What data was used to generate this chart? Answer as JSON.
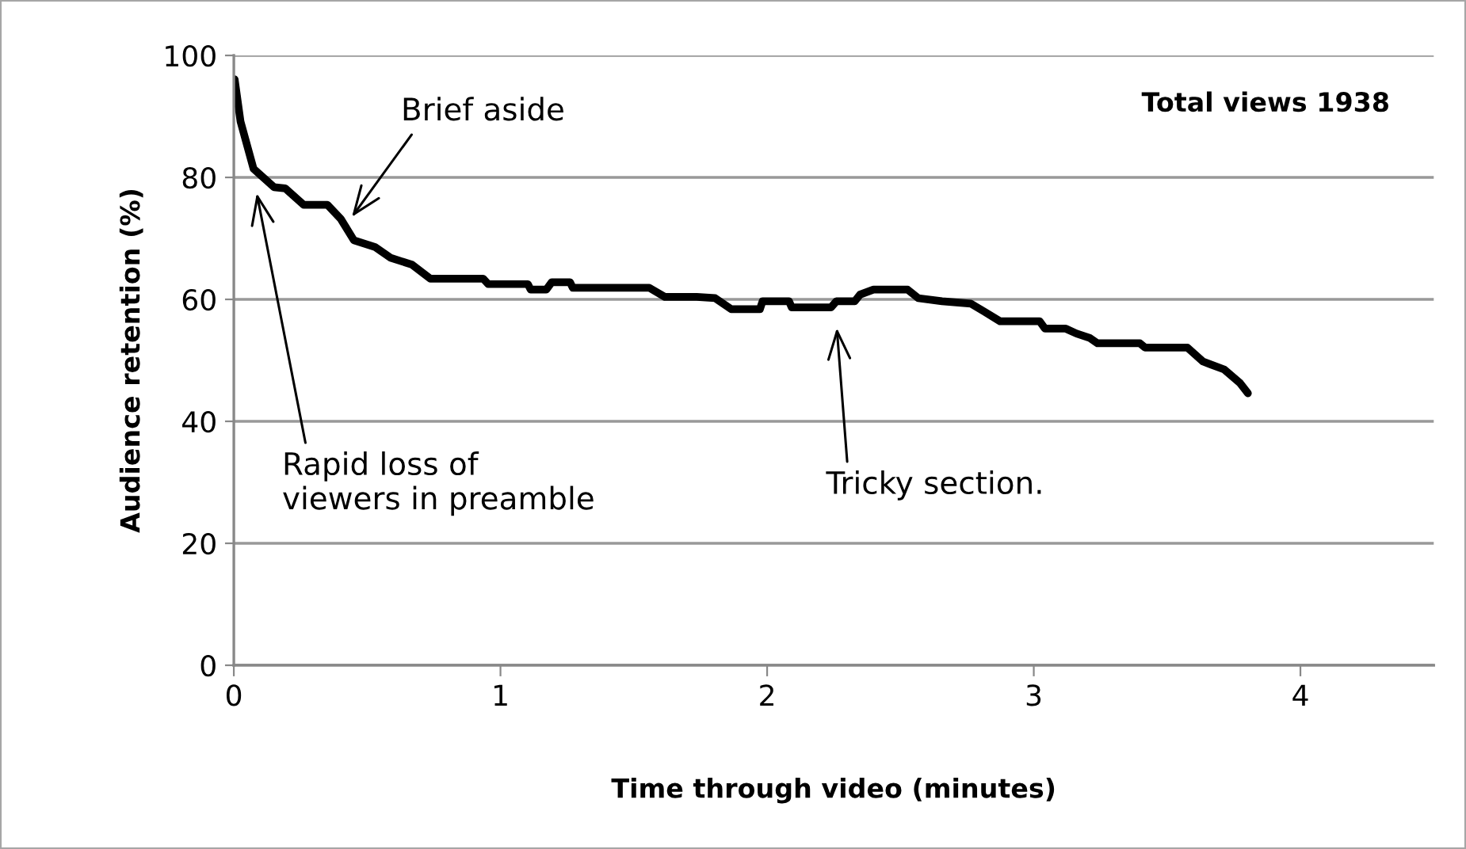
{
  "chart_data": {
    "type": "line",
    "xlabel": "Time through video (minutes)",
    "ylabel": "Audience retention (%)",
    "x": [
      0.003,
      0.025,
      0.074,
      0.151,
      0.193,
      0.262,
      0.351,
      0.401,
      0.45,
      0.529,
      0.589,
      0.668,
      0.737,
      0.935,
      0.954,
      1.103,
      1.113,
      1.172,
      1.192,
      1.261,
      1.271,
      1.558,
      1.617,
      1.736,
      1.805,
      1.865,
      1.973,
      1.983,
      2.082,
      2.092,
      2.24,
      2.26,
      2.329,
      2.349,
      2.399,
      2.527,
      2.567,
      2.656,
      2.764,
      2.814,
      2.874,
      3.022,
      3.042,
      3.12,
      3.16,
      3.209,
      3.239,
      3.398,
      3.417,
      3.576,
      3.635,
      3.714,
      3.773,
      3.803
    ],
    "series": [
      {
        "color": "#000000",
        "values": [
          96.1,
          89.2,
          81.4,
          78.4,
          78.2,
          75.5,
          75.5,
          73.2,
          69.7,
          68.6,
          66.8,
          65.7,
          63.4,
          63.4,
          62.5,
          62.5,
          61.6,
          61.6,
          62.8,
          62.8,
          61.9,
          61.9,
          60.4,
          60.4,
          60.2,
          58.4,
          58.4,
          59.7,
          59.7,
          58.7,
          58.7,
          59.7,
          59.7,
          60.8,
          61.6,
          61.6,
          60.2,
          59.7,
          59.3,
          58.0,
          56.4,
          56.4,
          55.2,
          55.2,
          54.4,
          53.7,
          52.8,
          52.8,
          52.1,
          52.1,
          49.8,
          48.5,
          46.3,
          44.6
        ]
      }
    ],
    "xlim": [
      0,
      4.5
    ],
    "xticks": [
      0,
      1,
      2,
      3,
      4
    ],
    "ylim": [
      0,
      100
    ],
    "yticks": [
      0,
      20,
      40,
      60,
      80,
      100
    ],
    "grid": "y",
    "marker": "none",
    "line_style": "solid",
    "legend": false,
    "annotations": [
      "Total views 1938",
      "Brief aside",
      "Rapid loss of\nviewers in preamble",
      "Tricky section."
    ]
  }
}
